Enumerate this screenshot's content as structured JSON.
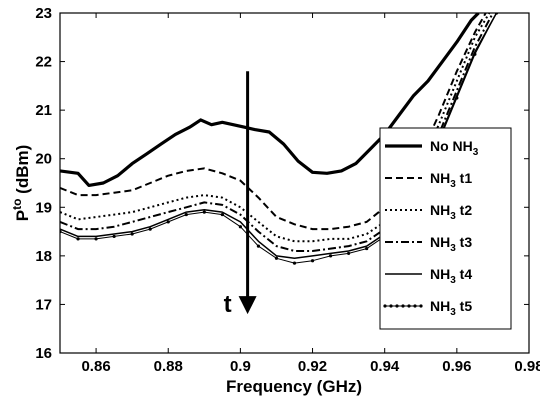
{
  "chart_data": {
    "type": "line",
    "xlabel": "Frequency (GHz)",
    "ylabel_main": "P",
    "ylabel_sup": "to",
    "ylabel_unit": "(dBm)",
    "xlim": [
      0.85,
      0.98
    ],
    "ylim": [
      16,
      23
    ],
    "xticks": [
      "0.86",
      "0.88",
      "0.9",
      "0.92",
      "0.94",
      "0.96",
      "0.98"
    ],
    "yticks": [
      "16",
      "17",
      "18",
      "19",
      "20",
      "21",
      "22",
      "23"
    ],
    "grid": false,
    "legend_position": "right",
    "annotation": {
      "label": "t",
      "arrow_x": 0.902,
      "arrow_y_start": 21.8,
      "arrow_y_end": 16.8
    },
    "series": [
      {
        "name_main": "No NH",
        "name_sub": "3",
        "name_suffix": "",
        "style": "thick",
        "x": [
          0.85,
          0.855,
          0.858,
          0.862,
          0.866,
          0.87,
          0.874,
          0.878,
          0.882,
          0.886,
          0.889,
          0.892,
          0.895,
          0.898,
          0.901,
          0.904,
          0.908,
          0.912,
          0.916,
          0.92,
          0.924,
          0.928,
          0.932,
          0.936,
          0.94,
          0.944,
          0.948,
          0.952,
          0.956,
          0.96,
          0.964,
          0.966
        ],
        "y": [
          19.75,
          19.7,
          19.45,
          19.5,
          19.65,
          19.9,
          20.1,
          20.3,
          20.5,
          20.65,
          20.8,
          20.7,
          20.75,
          20.7,
          20.65,
          20.6,
          20.55,
          20.3,
          19.95,
          19.72,
          19.7,
          19.75,
          19.9,
          20.2,
          20.5,
          20.9,
          21.3,
          21.6,
          22.0,
          22.4,
          22.85,
          23.0
        ]
      },
      {
        "name_main": "NH",
        "name_sub": "3",
        "name_suffix": " t1",
        "style": "dashed",
        "x": [
          0.85,
          0.855,
          0.86,
          0.865,
          0.87,
          0.875,
          0.88,
          0.885,
          0.89,
          0.895,
          0.9,
          0.905,
          0.91,
          0.915,
          0.92,
          0.925,
          0.93,
          0.935,
          0.94,
          0.945,
          0.95,
          0.955,
          0.96,
          0.965,
          0.968
        ],
        "y": [
          19.4,
          19.25,
          19.25,
          19.3,
          19.35,
          19.5,
          19.65,
          19.75,
          19.8,
          19.7,
          19.55,
          19.2,
          18.8,
          18.65,
          18.55,
          18.55,
          18.6,
          18.7,
          19.0,
          19.5,
          20.1,
          20.9,
          21.8,
          22.6,
          23.0
        ]
      },
      {
        "name_main": "NH",
        "name_sub": "3",
        "name_suffix": " t2",
        "style": "dotted",
        "x": [
          0.85,
          0.855,
          0.86,
          0.865,
          0.87,
          0.875,
          0.88,
          0.885,
          0.89,
          0.895,
          0.9,
          0.905,
          0.91,
          0.915,
          0.92,
          0.925,
          0.93,
          0.935,
          0.94,
          0.945,
          0.95,
          0.955,
          0.96,
          0.965,
          0.969
        ],
        "y": [
          18.9,
          18.75,
          18.8,
          18.85,
          18.9,
          19.0,
          19.1,
          19.2,
          19.25,
          19.2,
          19.0,
          18.7,
          18.4,
          18.3,
          18.3,
          18.35,
          18.35,
          18.45,
          18.7,
          19.2,
          19.9,
          20.7,
          21.6,
          22.5,
          23.0
        ]
      },
      {
        "name_main": "NH",
        "name_sub": "3",
        "name_suffix": " t3",
        "style": "dashdot",
        "x": [
          0.85,
          0.855,
          0.86,
          0.865,
          0.87,
          0.875,
          0.88,
          0.885,
          0.89,
          0.895,
          0.9,
          0.905,
          0.91,
          0.915,
          0.92,
          0.925,
          0.93,
          0.935,
          0.94,
          0.945,
          0.95,
          0.955,
          0.96,
          0.965,
          0.97
        ],
        "y": [
          18.7,
          18.55,
          18.55,
          18.6,
          18.7,
          18.8,
          18.9,
          19.0,
          19.1,
          19.05,
          18.85,
          18.5,
          18.2,
          18.1,
          18.1,
          18.15,
          18.2,
          18.3,
          18.55,
          19.0,
          19.7,
          20.5,
          21.4,
          22.3,
          23.0
        ]
      },
      {
        "name_main": "NH",
        "name_sub": "3",
        "name_suffix": " t4",
        "style": "solid",
        "x": [
          0.85,
          0.855,
          0.86,
          0.865,
          0.87,
          0.875,
          0.88,
          0.885,
          0.89,
          0.895,
          0.9,
          0.905,
          0.91,
          0.915,
          0.92,
          0.925,
          0.93,
          0.935,
          0.94,
          0.945,
          0.95,
          0.955,
          0.96,
          0.965,
          0.971
        ],
        "y": [
          18.55,
          18.4,
          18.4,
          18.45,
          18.5,
          18.6,
          18.75,
          18.9,
          18.95,
          18.9,
          18.7,
          18.3,
          18.0,
          17.95,
          18.0,
          18.05,
          18.1,
          18.2,
          18.45,
          18.9,
          19.6,
          20.4,
          21.3,
          22.2,
          23.0
        ]
      },
      {
        "name_main": "NH",
        "name_sub": "3",
        "name_suffix": " t5",
        "style": "marker",
        "x": [
          0.85,
          0.855,
          0.86,
          0.865,
          0.87,
          0.875,
          0.88,
          0.885,
          0.89,
          0.895,
          0.9,
          0.905,
          0.91,
          0.915,
          0.92,
          0.925,
          0.93,
          0.935,
          0.94,
          0.945,
          0.95,
          0.955,
          0.96,
          0.965,
          0.971
        ],
        "y": [
          18.5,
          18.35,
          18.35,
          18.4,
          18.45,
          18.55,
          18.7,
          18.85,
          18.9,
          18.85,
          18.6,
          18.2,
          17.95,
          17.85,
          17.9,
          18.0,
          18.05,
          18.15,
          18.4,
          18.85,
          19.55,
          20.35,
          21.25,
          22.15,
          23.0
        ]
      }
    ]
  }
}
